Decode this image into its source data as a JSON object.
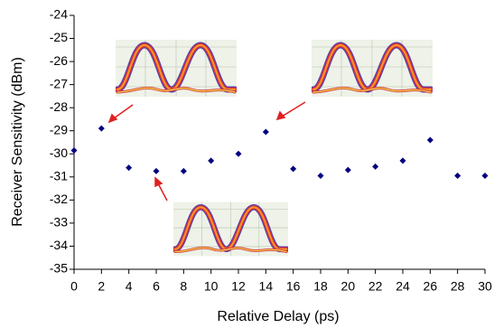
{
  "chart_data": {
    "type": "scatter",
    "x_label": "Relative Delay (ps)",
    "y_label": "Receiver Sensitivity (dBm)",
    "x": [
      0,
      2,
      4,
      6,
      8,
      10,
      12,
      14,
      16,
      18,
      20,
      22,
      24,
      26,
      28,
      30
    ],
    "values": [
      -29.85,
      -28.9,
      -30.6,
      -30.75,
      -30.75,
      -30.3,
      -30.0,
      -29.05,
      -30.65,
      -30.95,
      -30.7,
      -30.55,
      -30.3,
      -29.4,
      -30.95,
      -30.95
    ],
    "color": "#000080",
    "xlim": [
      0,
      30
    ],
    "xticks": [
      0,
      2,
      4,
      6,
      8,
      10,
      12,
      14,
      16,
      18,
      20,
      22,
      24,
      26,
      28,
      30
    ],
    "ylim": [
      -35,
      -24
    ],
    "yticks": [
      -35,
      -34,
      -33,
      -32,
      -31,
      -30,
      -29,
      -28,
      -27,
      -26,
      -25,
      -24
    ],
    "grid": false
  }
}
